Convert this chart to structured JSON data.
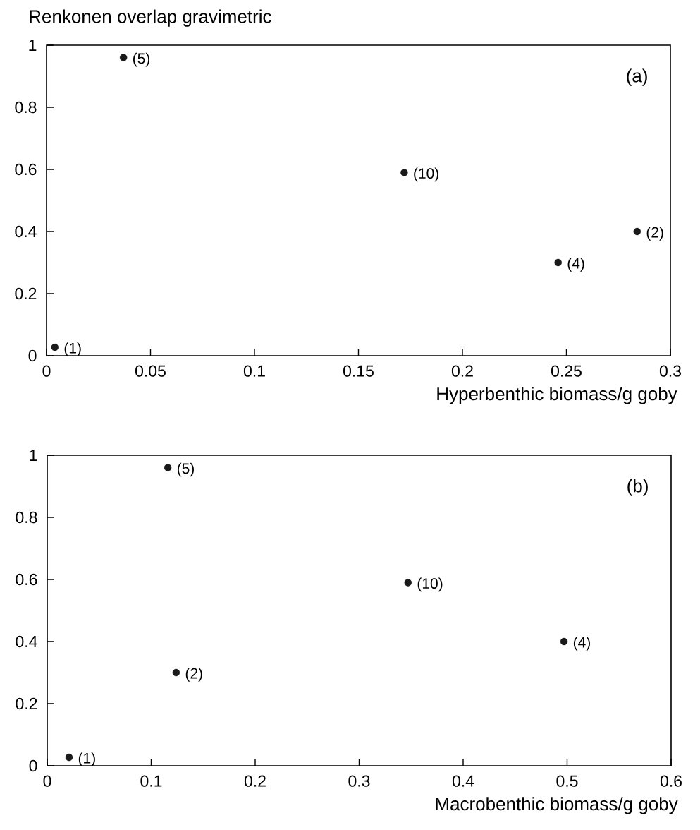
{
  "chart_data": [
    {
      "type": "scatter",
      "ylabel": "Renkonen overlap gravimetric",
      "xlabel": "Hyperbenthic biomass/g goby",
      "color": "#1a1a1a",
      "marker": "circle",
      "x": [
        0.004,
        0.037,
        0.172,
        0.246,
        0.284
      ],
      "values": [
        0.027,
        0.96,
        0.59,
        0.3,
        0.4
      ],
      "xlim": [
        0,
        0.3
      ],
      "ylim": [
        0,
        1
      ],
      "xticks": [
        0,
        0.05,
        0.1,
        0.15,
        0.2,
        0.25,
        0.3
      ],
      "yticks": [
        0,
        0.2,
        0.4,
        0.6,
        0.8,
        1
      ],
      "annotations": [
        "(a)",
        {
          "text": "(1)",
          "x": 0.004,
          "y": 0.027
        },
        {
          "text": "(5)",
          "x": 0.037,
          "y": 0.96
        },
        {
          "text": "(10)",
          "x": 0.172,
          "y": 0.59
        },
        {
          "text": "(4)",
          "x": 0.246,
          "y": 0.3
        },
        {
          "text": "(2)",
          "x": 0.284,
          "y": 0.4
        }
      ]
    },
    {
      "type": "scatter",
      "xlabel": "Macrobenthic biomass/g goby",
      "color": "#1a1a1a",
      "marker": "circle",
      "x": [
        0.021,
        0.116,
        0.124,
        0.347,
        0.497
      ],
      "values": [
        0.027,
        0.96,
        0.3,
        0.59,
        0.4
      ],
      "xlim": [
        0,
        0.6
      ],
      "ylim": [
        0,
        1
      ],
      "xticks": [
        0,
        0.1,
        0.2,
        0.3,
        0.4,
        0.5,
        0.6
      ],
      "yticks": [
        0,
        0.2,
        0.4,
        0.6,
        0.8,
        1
      ],
      "annotations": [
        "(b)",
        {
          "text": "(1)",
          "x": 0.021,
          "y": 0.027
        },
        {
          "text": "(5)",
          "x": 0.116,
          "y": 0.96
        },
        {
          "text": "(2)",
          "x": 0.124,
          "y": 0.3
        },
        {
          "text": "(10)",
          "x": 0.347,
          "y": 0.59
        },
        {
          "text": "(4)",
          "x": 0.497,
          "y": 0.4
        }
      ]
    }
  ]
}
